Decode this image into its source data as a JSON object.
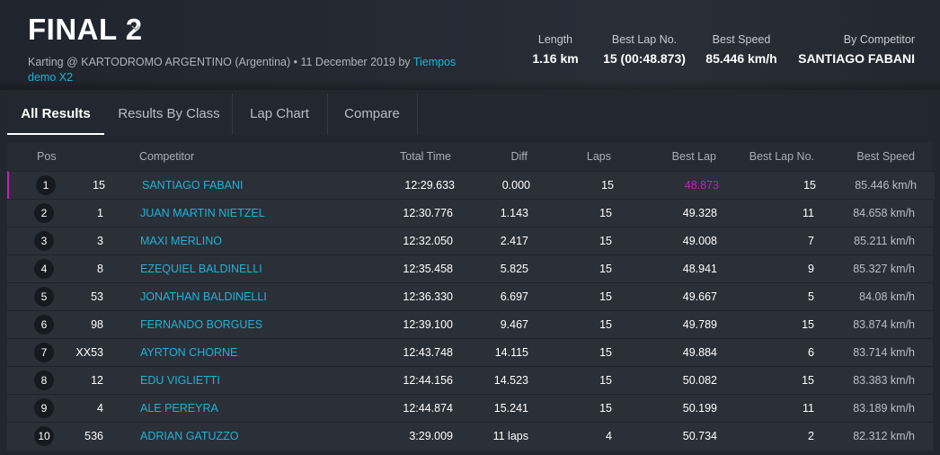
{
  "event": {
    "title": "FINAL 2",
    "subtitle": "Karting @ KARTODROMO ARGENTINO (Argentina) • 11 December 2019 by",
    "author_link": "Tiempos demo X2"
  },
  "stats": {
    "length_label": "Length",
    "length_value": "1.16 km",
    "best_lap_no_label": "Best Lap No.",
    "best_lap_no_value": "15 (00:48.873)",
    "best_speed_label": "Best Speed",
    "best_speed_value": "85.446 km/h",
    "by_competitor_label": "By Competitor",
    "by_competitor_value": "SANTIAGO FABANI"
  },
  "tabs": [
    "All Results",
    "Results By Class",
    "Lap Chart",
    "Compare"
  ],
  "columns": {
    "pos": "Pos",
    "competitor": "Competitor",
    "total_time": "Total Time",
    "diff": "Diff",
    "laps": "Laps",
    "best_lap": "Best Lap",
    "best_lap_no": "Best Lap No.",
    "best_speed": "Best Speed"
  },
  "results": [
    {
      "pos": "1",
      "no": "15",
      "name": "SANTIAGO FABANI",
      "total": "12:29.633",
      "diff": "0.000",
      "laps": "15",
      "best": "48.873",
      "best_no": "15",
      "speed": "85.446 km/h"
    },
    {
      "pos": "2",
      "no": "1",
      "name": "JUAN MARTIN NIETZEL",
      "total": "12:30.776",
      "diff": "1.143",
      "laps": "15",
      "best": "49.328",
      "best_no": "11",
      "speed": "84.658 km/h"
    },
    {
      "pos": "3",
      "no": "3",
      "name": "MAXI MERLINO",
      "total": "12:32.050",
      "diff": "2.417",
      "laps": "15",
      "best": "49.008",
      "best_no": "7",
      "speed": "85.211 km/h"
    },
    {
      "pos": "4",
      "no": "8",
      "name": "EZEQUIEL BALDINELLI",
      "total": "12:35.458",
      "diff": "5.825",
      "laps": "15",
      "best": "48.941",
      "best_no": "9",
      "speed": "85.327 km/h"
    },
    {
      "pos": "5",
      "no": "53",
      "name": "JONATHAN BALDINELLI",
      "total": "12:36.330",
      "diff": "6.697",
      "laps": "15",
      "best": "49.667",
      "best_no": "5",
      "speed": "84.08 km/h"
    },
    {
      "pos": "6",
      "no": "98",
      "name": "FERNANDO BORGUES",
      "total": "12:39.100",
      "diff": "9.467",
      "laps": "15",
      "best": "49.789",
      "best_no": "15",
      "speed": "83.874 km/h"
    },
    {
      "pos": "7",
      "no": "XX53",
      "name": "AYRTON CHORNE",
      "total": "12:43.748",
      "diff": "14.115",
      "laps": "15",
      "best": "49.884",
      "best_no": "6",
      "speed": "83.714 km/h"
    },
    {
      "pos": "8",
      "no": "12",
      "name": "EDU VIGLIETTI",
      "total": "12:44.156",
      "diff": "14.523",
      "laps": "15",
      "best": "50.082",
      "best_no": "15",
      "speed": "83.383 km/h"
    },
    {
      "pos": "9",
      "no": "4",
      "name": "ALE PEREYRA",
      "total": "12:44.874",
      "diff": "15.241",
      "laps": "15",
      "best": "50.199",
      "best_no": "11",
      "speed": "83.189 km/h"
    },
    {
      "pos": "10",
      "no": "536",
      "name": "ADRIAN GATUZZO",
      "total": "3:29.009",
      "diff": "11 laps",
      "laps": "4",
      "best": "50.734",
      "best_no": "2",
      "speed": "82.312 km/h"
    }
  ],
  "colors": {
    "accent": "#1fb3d6",
    "best_lap_highlight": "#c51fbe",
    "background": "#22262f"
  }
}
